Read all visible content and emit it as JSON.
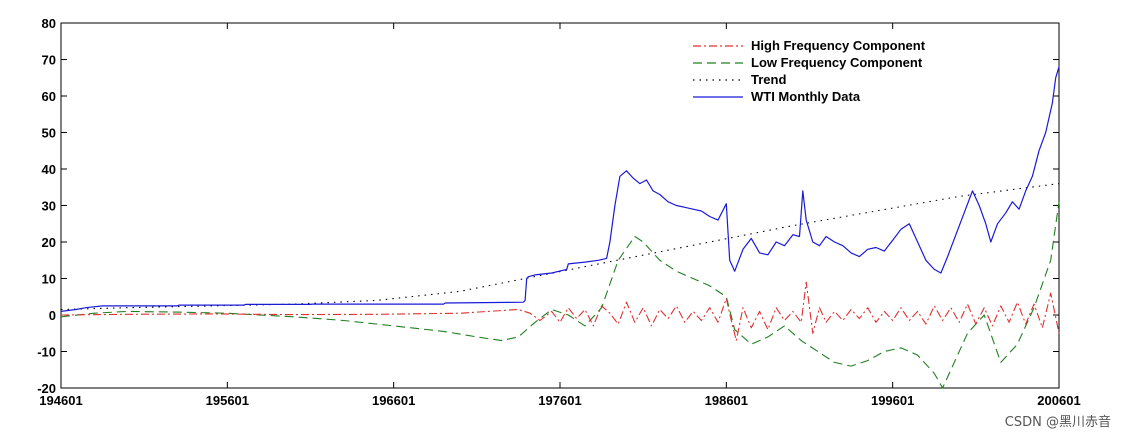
{
  "chart_data": {
    "type": "line",
    "title": "",
    "xlabel": "",
    "ylabel": "",
    "xlim": [
      1946.0,
      2006.0
    ],
    "ylim": [
      -20,
      80
    ],
    "y_ticks": [
      -20,
      -10,
      0,
      10,
      20,
      30,
      40,
      50,
      60,
      70,
      80
    ],
    "x_ticks": [
      {
        "value": 1946.0,
        "label": "194601"
      },
      {
        "value": 1956.0,
        "label": "195601"
      },
      {
        "value": 1966.0,
        "label": "196601"
      },
      {
        "value": 1976.0,
        "label": "197601"
      },
      {
        "value": 1986.0,
        "label": "198601"
      },
      {
        "value": 1996.0,
        "label": "199601"
      },
      {
        "value": 2006.0,
        "label": "200601"
      }
    ],
    "grid": false,
    "legend_position": "top-right",
    "series": [
      {
        "name": "High Frequency Component",
        "color": "#e03030",
        "dash": "dashdot",
        "x": [
          1946,
          1950,
          1955,
          1960,
          1965,
          1970,
          1973.5,
          1974.2,
          1974.8,
          1975.5,
          1976,
          1976.5,
          1977,
          1977.5,
          1978,
          1978.5,
          1979,
          1979.5,
          1980,
          1980.5,
          1981,
          1981.5,
          1982,
          1982.5,
          1983,
          1983.5,
          1984,
          1984.5,
          1985,
          1985.5,
          1986,
          1986.3,
          1986.6,
          1987,
          1987.5,
          1988,
          1988.5,
          1989,
          1989.5,
          1990,
          1990.5,
          1990.8,
          1991.2,
          1991.6,
          1992,
          1992.5,
          1993,
          1993.5,
          1994,
          1994.5,
          1995,
          1995.5,
          1996,
          1996.5,
          1997,
          1997.5,
          1998,
          1998.5,
          1999,
          1999.5,
          2000,
          2000.5,
          2001,
          2001.5,
          2002,
          2002.5,
          2003,
          2003.5,
          2004,
          2004.5,
          2005,
          2005.5,
          2006
        ],
        "y": [
          0,
          0.2,
          0.3,
          0.1,
          0.2,
          0.5,
          1.5,
          0.5,
          -1.5,
          1.0,
          -2.0,
          2.0,
          -1.0,
          1.5,
          -3.0,
          2.5,
          0.5,
          -2.5,
          3.5,
          -2.0,
          2.0,
          -3.0,
          1.5,
          -1.0,
          2.5,
          -2.0,
          1.0,
          -1.5,
          2.0,
          -2.0,
          4.5,
          -1.5,
          -7.0,
          2.0,
          -3.5,
          1.0,
          -4.0,
          2.0,
          -1.5,
          1.0,
          -2.0,
          9.0,
          -5.0,
          2.0,
          -2.0,
          1.0,
          -1.5,
          1.5,
          -1.0,
          2.0,
          -2.0,
          1.0,
          -1.5,
          2.0,
          -1.5,
          1.0,
          -2.5,
          2.5,
          -1.5,
          2.0,
          -2.0,
          3.0,
          -2.5,
          2.0,
          -3.0,
          2.5,
          -2.0,
          3.5,
          -2.5,
          3.0,
          -3.5,
          6.0,
          -5.0
        ]
      },
      {
        "name": "Low Frequency Component",
        "color": "#208020",
        "dash": "dashed",
        "x": [
          1946,
          1948,
          1950,
          1953,
          1956,
          1960,
          1963,
          1966,
          1969,
          1971,
          1972.5,
          1973.5,
          1974.5,
          1975.5,
          1976.5,
          1977.5,
          1978.5,
          1979.5,
          1980.5,
          1981,
          1982,
          1983,
          1984,
          1985,
          1986,
          1986.5,
          1987.5,
          1988.5,
          1989.5,
          1990.5,
          1991.5,
          1992.5,
          1993.5,
          1994.5,
          1995.5,
          1996.5,
          1997.5,
          1998.5,
          1999,
          1999.8,
          2000.5,
          2001.5,
          2002.5,
          2003.5,
          2004.5,
          2005.5,
          2006
        ],
        "y": [
          -0.5,
          0.5,
          1.0,
          0.8,
          0.5,
          -0.5,
          -1.5,
          -3.0,
          -4.5,
          -6.0,
          -7.0,
          -6.0,
          -2.0,
          1.5,
          0.0,
          -3.0,
          2.0,
          15.0,
          21.5,
          20.0,
          15.0,
          12.0,
          10.0,
          8.0,
          5.0,
          -4.0,
          -8.0,
          -6.0,
          -3.0,
          -7.0,
          -10.0,
          -13.0,
          -14.0,
          -12.5,
          -10.0,
          -9.0,
          -11.0,
          -16.0,
          -20.0,
          -12.0,
          -5.0,
          0.0,
          -13.0,
          -8.0,
          2.0,
          15.0,
          31.0
        ]
      },
      {
        "name": "Trend",
        "color": "#000000",
        "dash": "dotted",
        "x": [
          1946,
          1950,
          1955,
          1960,
          1965,
          1970,
          1975,
          1980,
          1985,
          1990,
          1995,
          2000,
          2006
        ],
        "y": [
          1.5,
          2.0,
          2.5,
          3.0,
          4.0,
          6.5,
          11.0,
          15.5,
          20.0,
          24.5,
          28.5,
          32.5,
          36.0
        ]
      },
      {
        "name": "WTI Monthly Data",
        "color": "#1a1ad8",
        "dash": "solid",
        "x": [
          1946,
          1946.9,
          1947.5,
          1948.5,
          1953,
          1953.1,
          1957,
          1957.1,
          1961,
          1961.1,
          1969,
          1969.1,
          1973.8,
          1973.9,
          1974.0,
          1974.1,
          1974.5,
          1975.5,
          1976.4,
          1976.5,
          1977.5,
          1978.3,
          1978.8,
          1979.0,
          1979.3,
          1979.6,
          1980.0,
          1980.4,
          1980.8,
          1981.2,
          1981.6,
          1982.0,
          1982.5,
          1983.0,
          1983.5,
          1984.0,
          1984.5,
          1985.0,
          1985.5,
          1986.0,
          1986.2,
          1986.5,
          1987.0,
          1987.5,
          1988.0,
          1988.5,
          1989.0,
          1989.5,
          1990.0,
          1990.4,
          1990.6,
          1990.8,
          1991.2,
          1991.6,
          1992.0,
          1992.5,
          1993.0,
          1993.5,
          1994.0,
          1994.5,
          1995.0,
          1995.5,
          1996.0,
          1996.5,
          1997.0,
          1997.5,
          1998.0,
          1998.5,
          1998.9,
          1999.3,
          1999.8,
          2000.3,
          2000.8,
          2001.2,
          2001.6,
          2001.9,
          2002.3,
          2002.8,
          2003.2,
          2003.6,
          2004.0,
          2004.4,
          2004.8,
          2005.2,
          2005.6,
          2005.8,
          2006
        ],
        "y": [
          1.0,
          1.5,
          2.0,
          2.5,
          2.5,
          2.7,
          2.7,
          2.9,
          2.9,
          3.0,
          3.0,
          3.3,
          3.5,
          4.0,
          10.0,
          10.5,
          11.0,
          11.5,
          12.5,
          14.0,
          14.5,
          15.0,
          15.5,
          20.0,
          30.0,
          38.0,
          39.5,
          37.5,
          36.0,
          37.0,
          34.0,
          33.0,
          31.0,
          30.0,
          29.5,
          29.0,
          28.5,
          27.0,
          26.0,
          30.5,
          15.0,
          12.0,
          18.0,
          21.0,
          17.0,
          16.5,
          20.0,
          19.0,
          22.0,
          21.5,
          34.0,
          26.0,
          20.0,
          19.0,
          21.5,
          20.0,
          19.0,
          17.0,
          16.0,
          18.0,
          18.5,
          17.5,
          20.5,
          23.5,
          25.0,
          20.0,
          15.0,
          12.5,
          11.5,
          16.0,
          22.0,
          28.0,
          34.0,
          30.0,
          25.0,
          20.0,
          25.0,
          28.0,
          31.0,
          29.0,
          34.0,
          38.0,
          45.0,
          50.0,
          58.0,
          65.0,
          68.0
        ]
      }
    ]
  },
  "watermark": "CSDN @黑川赤音"
}
